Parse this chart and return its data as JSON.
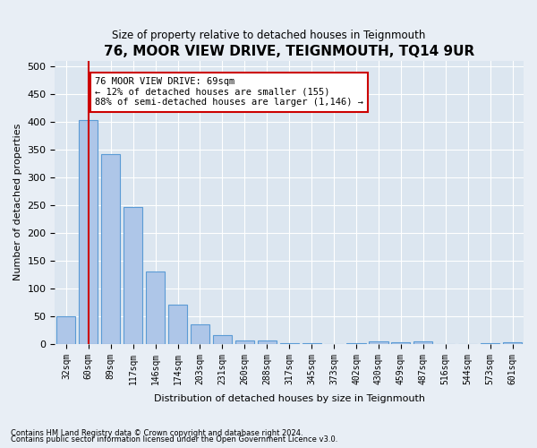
{
  "title": "76, MOOR VIEW DRIVE, TEIGNMOUTH, TQ14 9UR",
  "subtitle": "Size of property relative to detached houses in Teignmouth",
  "xlabel": "Distribution of detached houses by size in Teignmouth",
  "ylabel": "Number of detached properties",
  "footnote1": "Contains HM Land Registry data © Crown copyright and database right 2024.",
  "footnote2": "Contains public sector information licensed under the Open Government Licence v3.0.",
  "bar_labels": [
    "32sqm",
    "60sqm",
    "89sqm",
    "117sqm",
    "146sqm",
    "174sqm",
    "203sqm",
    "231sqm",
    "260sqm",
    "288sqm",
    "317sqm",
    "345sqm",
    "373sqm",
    "402sqm",
    "430sqm",
    "459sqm",
    "487sqm",
    "516sqm",
    "544sqm",
    "573sqm",
    "601sqm"
  ],
  "bar_values": [
    50,
    403,
    342,
    246,
    130,
    70,
    36,
    16,
    7,
    6,
    2,
    1,
    0,
    1,
    5,
    3,
    4,
    0,
    0,
    1,
    3
  ],
  "bar_color": "#aec6e8",
  "bar_edgecolor": "#5b9bd5",
  "vline_x": 1,
  "vline_color": "#cc0000",
  "ylim": [
    0,
    510
  ],
  "yticks": [
    0,
    50,
    100,
    150,
    200,
    250,
    300,
    350,
    400,
    450,
    500
  ],
  "annotation_text": "76 MOOR VIEW DRIVE: 69sqm\n← 12% of detached houses are smaller (155)\n88% of semi-detached houses are larger (1,146) →",
  "annotation_box_edgecolor": "#cc0000",
  "annotation_box_facecolor": "#ffffff",
  "bg_color": "#e8eef5",
  "plot_bg_color": "#dce6f0"
}
